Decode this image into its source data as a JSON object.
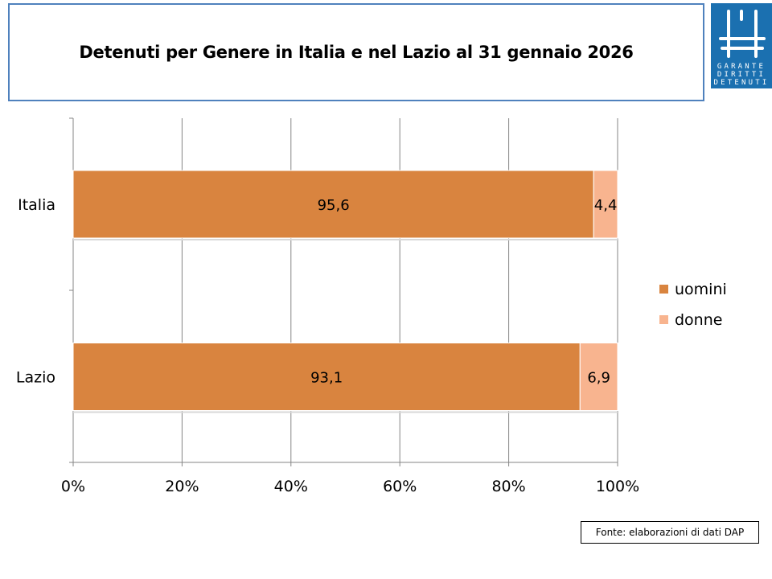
{
  "header": {
    "title": "Detenuti per Genere in Italia e nel Lazio al 31 gennaio 2026"
  },
  "logo": {
    "text_lines": [
      "GARANTE",
      "DIRITTI",
      "DETENUTI"
    ],
    "color": "#1b70b0"
  },
  "source": "Fonte: elaborazioni di dati DAP",
  "chart_data": {
    "type": "bar",
    "orientation": "horizontal",
    "stacked": "percent",
    "title": "Detenuti per Genere in Italia e nel Lazio al 31 gennaio 2026",
    "categories": [
      "Italia",
      "Lazio"
    ],
    "series": [
      {
        "name": "uomini",
        "values": [
          95.6,
          93.1
        ],
        "labels": [
          "95,6",
          "93,1"
        ],
        "color": "#d9843f"
      },
      {
        "name": "donne",
        "values": [
          4.4,
          6.9
        ],
        "labels": [
          "4,4",
          "6,9"
        ],
        "color": "#f8b48f"
      }
    ],
    "xlim": [
      0,
      100
    ],
    "xticks": [
      "0%",
      "20%",
      "40%",
      "60%",
      "80%",
      "100%"
    ],
    "grid": true,
    "legend": "right"
  }
}
